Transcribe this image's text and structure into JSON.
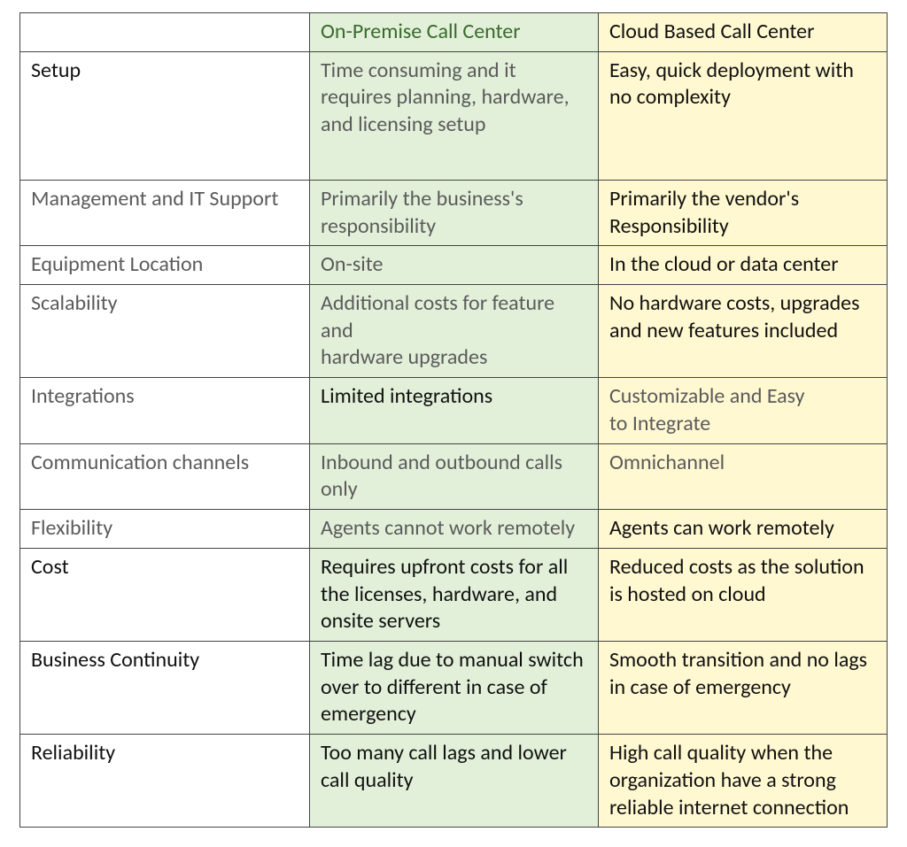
{
  "table": {
    "type": "table",
    "column_widths_pct": [
      33.4,
      33.3,
      33.3
    ],
    "border_color": "#444444",
    "colors": {
      "label_bg": "#ffffff",
      "onprem_bg": "#e2f0d9",
      "cloud_bg": "#fff8d0",
      "text_grey": "#5b5b5b",
      "text_black": "#111111",
      "onprem_header_text": "#3a6a2e"
    },
    "font": {
      "family": "Calibri",
      "size_pt": 18,
      "line_height": 1.28
    },
    "headers": {
      "corner": "",
      "onprem": "On-Premise Call Center",
      "cloud": "Cloud Based Call Center"
    },
    "rows": [
      {
        "label": "Setup",
        "label_color": "black",
        "onprem": "Time consuming and it requires planning, hardware, and licensing setup",
        "onprem_color": "grey",
        "cloud": "Easy, quick deployment with no complexity",
        "cloud_color": "black",
        "extra_class": "setuprow"
      },
      {
        "label": "Management and IT Support",
        "label_color": "grey",
        "onprem": "Primarily the business's responsibility",
        "onprem_color": "grey",
        "cloud": "Primarily the vendor's Responsibility",
        "cloud_color": "black"
      },
      {
        "label": "Equipment Location",
        "label_color": "grey",
        "onprem": "On-site",
        "onprem_color": "grey",
        "cloud": "In the cloud or data center",
        "cloud_color": "black"
      },
      {
        "label": "Scalability",
        "label_color": "grey",
        "onprem": "Additional costs for feature and\nhardware upgrades",
        "onprem_color": "grey",
        "cloud": "No hardware costs, upgrades and new features included",
        "cloud_color": "black"
      },
      {
        "label": "Integrations",
        "label_color": "grey",
        "onprem": "Limited integrations",
        "onprem_color": "black",
        "cloud": "Customizable and Easy to Integrate",
        "cloud_color": "grey"
      },
      {
        "label": "Communication channels",
        "label_color": "grey",
        "onprem": "Inbound and outbound calls only",
        "onprem_color": "grey",
        "cloud": "Omnichannel",
        "cloud_color": "grey"
      },
      {
        "label": "Flexibility",
        "label_color": "grey",
        "onprem": "Agents cannot work remotely",
        "onprem_color": "grey",
        "cloud": "Agents can work remotely",
        "cloud_color": "black"
      },
      {
        "label": "Cost",
        "label_color": "black",
        "onprem": "Requires upfront costs for all the licenses, hardware, and onsite servers",
        "onprem_color": "black",
        "cloud": "Reduced costs as the solution is hosted on cloud",
        "cloud_color": "black"
      },
      {
        "label": "Business Continuity",
        "label_color": "black",
        "onprem": "Time lag due to manual switch over to different in case of emergency",
        "onprem_color": "black",
        "cloud": "Smooth transition and no lags in case of emergency",
        "cloud_color": "black"
      },
      {
        "label": "Reliability",
        "label_color": "black",
        "onprem": "Too many call lags and lower call quality",
        "onprem_color": "black",
        "cloud": "High call quality when the organization have a strong reliable internet connection",
        "cloud_color": "black"
      }
    ]
  }
}
